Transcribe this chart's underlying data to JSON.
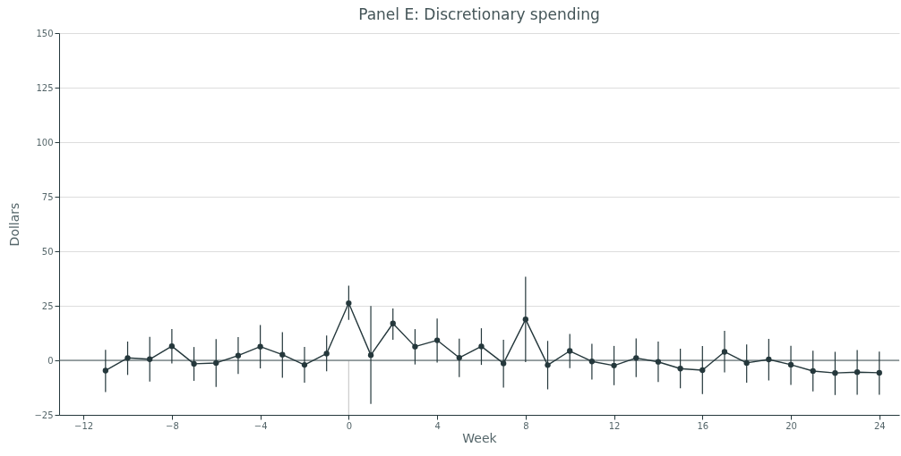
{
  "chart_data": {
    "type": "line",
    "title": "Panel E: Discretionary spending",
    "xlabel": "Week",
    "ylabel": "Dollars",
    "x": [
      -11,
      -10,
      -9,
      -8,
      -7,
      -6,
      -5,
      -4,
      -3,
      -2,
      -1,
      0,
      1,
      2,
      3,
      4,
      5,
      6,
      7,
      8,
      9,
      10,
      11,
      12,
      13,
      14,
      15,
      16,
      17,
      18,
      19,
      20,
      21,
      22,
      23,
      24
    ],
    "series": [
      {
        "color": "#25383c",
        "values": [
          -4.7,
          1.1,
          0.5,
          6.5,
          -1.6,
          -1.2,
          2.2,
          6.3,
          2.6,
          -2.1,
          3.1,
          26.2,
          2.4,
          16.9,
          6.3,
          9.2,
          1.2,
          6.4,
          -1.4,
          18.8,
          -2.2,
          4.3,
          -0.5,
          -2.4,
          1.1,
          -0.7,
          -3.8,
          -4.5,
          3.9,
          -1.2,
          0.4,
          -2.0,
          -4.9,
          -5.8,
          -5.4,
          -5.7
        ],
        "errors": [
          [
            -14.5,
            4.8
          ],
          [
            -6.7,
            8.6
          ],
          [
            -9.7,
            10.8
          ],
          [
            -1.4,
            14.3
          ],
          [
            -9.4,
            6.1
          ],
          [
            -12.2,
            9.7
          ],
          [
            -6.3,
            10.7
          ],
          [
            -3.7,
            16.2
          ],
          [
            -8.0,
            12.9
          ],
          [
            -10.2,
            6.1
          ],
          [
            -5.0,
            11.4
          ],
          [
            18.5,
            34.2
          ],
          [
            -20.0,
            24.9
          ],
          [
            9.4,
            23.8
          ],
          [
            -1.9,
            14.3
          ],
          [
            -1.0,
            19.2
          ],
          [
            -7.7,
            9.9
          ],
          [
            -2.1,
            14.7
          ],
          [
            -12.5,
            9.4
          ],
          [
            -0.8,
            38.3
          ],
          [
            -13.3,
            8.9
          ],
          [
            -3.6,
            12.1
          ],
          [
            -8.8,
            7.6
          ],
          [
            -11.4,
            6.6
          ],
          [
            -7.7,
            10.0
          ],
          [
            -9.9,
            8.6
          ],
          [
            -12.8,
            5.3
          ],
          [
            -15.5,
            6.6
          ],
          [
            -5.5,
            13.5
          ],
          [
            -10.2,
            7.3
          ],
          [
            -9.2,
            9.8
          ],
          [
            -11.3,
            6.7
          ],
          [
            -14.2,
            4.4
          ],
          [
            -15.9,
            3.9
          ],
          [
            -15.8,
            4.7
          ],
          [
            -15.8,
            4.0
          ]
        ]
      }
    ],
    "xlim": [
      -13.1,
      24.9
    ],
    "xticks": [
      -12,
      -8,
      -4,
      0,
      4,
      8,
      12,
      16,
      20,
      24
    ],
    "ylim": [
      -25,
      150
    ],
    "yticks": [
      -25,
      0,
      25,
      50,
      75,
      100,
      125,
      150
    ],
    "grid": "y",
    "marker": "circle",
    "line_style": "solid",
    "ref_lines": [
      {
        "axis": "x",
        "value": 0,
        "color": "#cccccc"
      },
      {
        "axis": "y",
        "value": 0,
        "color": "#44575b"
      }
    ]
  }
}
